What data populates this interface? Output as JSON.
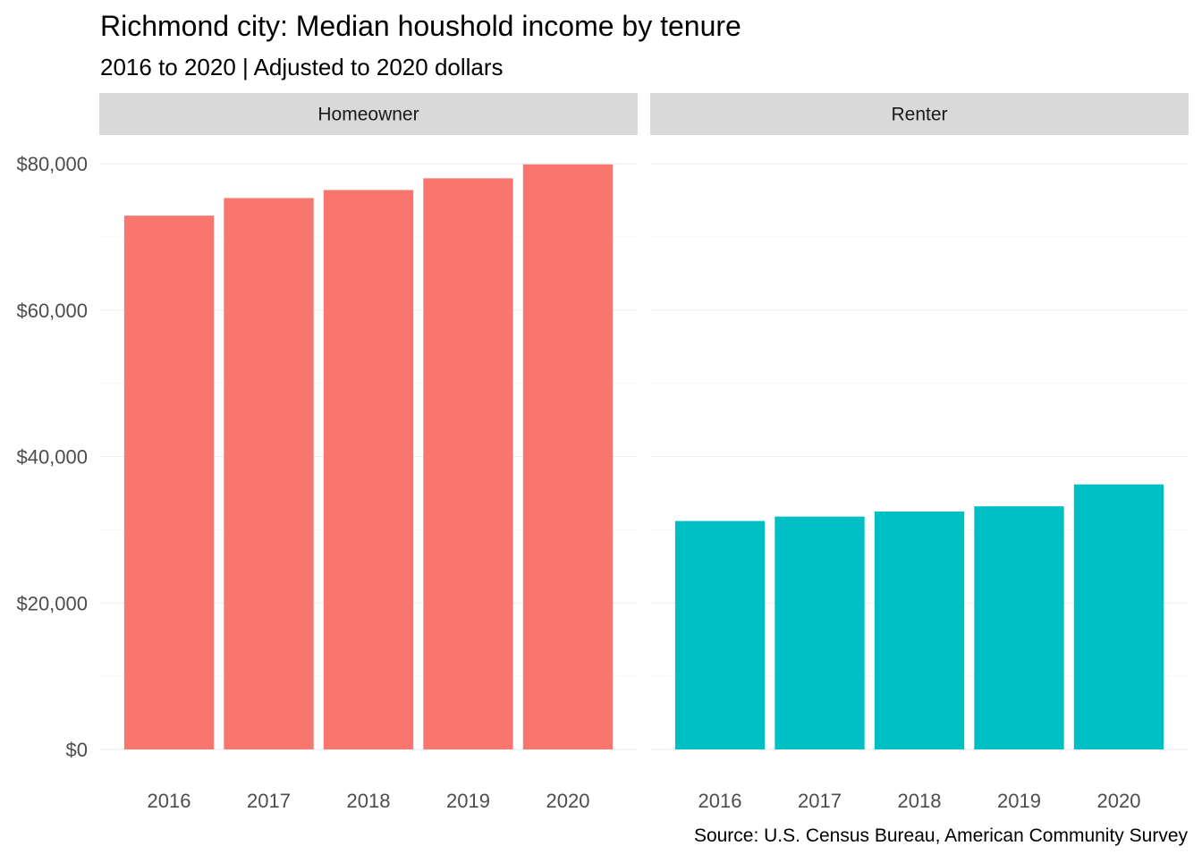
{
  "chart_data": {
    "type": "bar",
    "title": "Richmond city: Median houshold income by tenure",
    "subtitle": "2016 to 2020 | Adjusted to 2020 dollars",
    "caption": "Source: U.S. Census Bureau, American Community Survey",
    "xlabel": "",
    "ylabel": "",
    "categories": [
      "2016",
      "2017",
      "2018",
      "2019",
      "2020"
    ],
    "y_ticks": [
      0,
      20000,
      40000,
      60000,
      80000
    ],
    "y_tick_labels": [
      "$0",
      "$20,000",
      "$40,000",
      "$60,000",
      "$80,000"
    ],
    "ylim": [
      0,
      80000
    ],
    "grid": true,
    "legend": "none",
    "panels": [
      {
        "name": "Homeowner",
        "color": "#F8766D",
        "values": [
          72900,
          75300,
          76400,
          78000,
          79900
        ]
      },
      {
        "name": "Renter",
        "color": "#00BFC4",
        "values": [
          31200,
          31800,
          32500,
          33200,
          36200
        ]
      }
    ]
  }
}
